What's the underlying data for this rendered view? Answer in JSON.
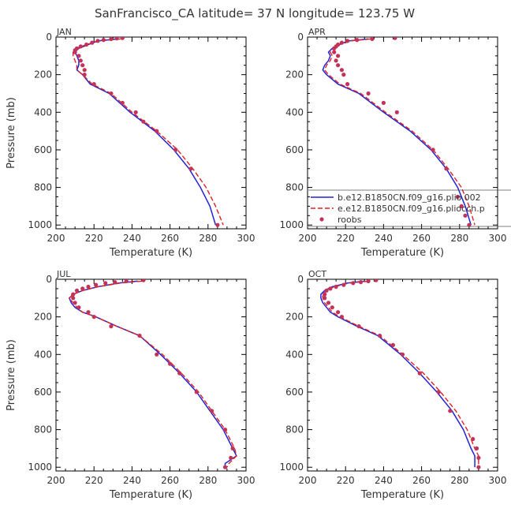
{
  "figure": {
    "title": "SanFrancisco_CA  latitude= 37 N longitude= 123.75 W"
  },
  "colors": {
    "series1": "#2323d6",
    "series2": "#e02020",
    "roobs": "#c2335a",
    "axis": "#000000"
  },
  "chart_data": [
    {
      "type": "line",
      "title": "JAN",
      "xlabel": "Temperature (K)",
      "ylabel": "Pressure (mb)",
      "xlim": [
        200,
        300
      ],
      "ylim": [
        1020,
        0
      ],
      "xticks": [
        200,
        220,
        240,
        260,
        280,
        300
      ],
      "yticks": [
        0,
        200,
        400,
        600,
        800,
        1000
      ],
      "y_inverted": true,
      "series": [
        {
          "name": "",
          "style": "solid",
          "points": [
            [
              233,
              10
            ],
            [
              222,
              20
            ],
            [
              217,
              40
            ],
            [
              212,
              60
            ],
            [
              210,
              80
            ],
            [
              211,
              100
            ],
            [
              212,
              125
            ],
            [
              212,
              150
            ],
            [
              211,
              175
            ],
            [
              214,
              200
            ],
            [
              218,
              250
            ],
            [
              228,
              300
            ],
            [
              239,
              400
            ],
            [
              252,
              500
            ],
            [
              262,
              600
            ],
            [
              270,
              700
            ],
            [
              276,
              800
            ],
            [
              281,
              900
            ],
            [
              284,
              1000
            ]
          ]
        },
        {
          "name": "",
          "style": "dashed",
          "points": [
            [
              234,
              10
            ],
            [
              223,
              20
            ],
            [
              216,
              40
            ],
            [
              211,
              60
            ],
            [
              209,
              80
            ],
            [
              209,
              100
            ],
            [
              210,
              125
            ],
            [
              211,
              150
            ],
            [
              211,
              175
            ],
            [
              214,
              200
            ],
            [
              219,
              250
            ],
            [
              229,
              300
            ],
            [
              240,
              400
            ],
            [
              253,
              500
            ],
            [
              264,
              600
            ],
            [
              272,
              700
            ],
            [
              279,
              800
            ],
            [
              284,
              900
            ],
            [
              288,
              1000
            ]
          ]
        }
      ],
      "roobs": [
        [
          235,
          5
        ],
        [
          232,
          7
        ],
        [
          229,
          10
        ],
        [
          225,
          15
        ],
        [
          222,
          20
        ],
        [
          219,
          30
        ],
        [
          216,
          40
        ],
        [
          213,
          50
        ],
        [
          211,
          60
        ],
        [
          210,
          70
        ],
        [
          210,
          80
        ],
        [
          212,
          100
        ],
        [
          213,
          125
        ],
        [
          214,
          150
        ],
        [
          215,
          175
        ],
        [
          215,
          200
        ],
        [
          220,
          250
        ],
        [
          229,
          300
        ],
        [
          235,
          350
        ],
        [
          242,
          400
        ],
        [
          246,
          450
        ],
        [
          253,
          500
        ],
        [
          263,
          600
        ],
        [
          271,
          700
        ],
        [
          285,
          1000
        ]
      ]
    },
    {
      "type": "line",
      "title": "APR",
      "xlabel": "Temperature (K)",
      "ylabel": "",
      "xlim": [
        200,
        300
      ],
      "ylim": [
        1020,
        0
      ],
      "xticks": [
        200,
        220,
        240,
        260,
        280,
        300
      ],
      "yticks": [
        0,
        200,
        400,
        600,
        800,
        1000
      ],
      "y_inverted": true,
      "legend": {
        "placement": "lower-right",
        "entries": [
          {
            "label": "b.e12.B1850CN.f09_g16.plio.002",
            "style": "solid"
          },
          {
            "label": "e.e12.B1850CN.f09_g16.pliocch.p",
            "style": "dashed"
          },
          {
            "label": "roobs",
            "style": "marker"
          }
        ]
      },
      "series": [
        {
          "name": "b.e12.B1850CN.f09_g16.plio.002",
          "style": "solid",
          "points": [
            [
              232,
              10
            ],
            [
              222,
              20
            ],
            [
              216,
              40
            ],
            [
              213,
              60
            ],
            [
              211,
              80
            ],
            [
              212,
              100
            ],
            [
              211,
              125
            ],
            [
              209,
              150
            ],
            [
              208,
              175
            ],
            [
              210,
              200
            ],
            [
              216,
              250
            ],
            [
              227,
              300
            ],
            [
              240,
              400
            ],
            [
              254,
              500
            ],
            [
              265,
              600
            ],
            [
              273,
              700
            ],
            [
              279,
              800
            ],
            [
              283,
              900
            ],
            [
              286,
              1000
            ]
          ]
        },
        {
          "name": "e.e12.B1850CN.f09_g16.pliocch.p",
          "style": "dashed",
          "points": [
            [
              233,
              10
            ],
            [
              223,
              20
            ],
            [
              217,
              40
            ],
            [
              214,
              60
            ],
            [
              212,
              80
            ],
            [
              213,
              100
            ],
            [
              212,
              125
            ],
            [
              210,
              150
            ],
            [
              209,
              175
            ],
            [
              211,
              200
            ],
            [
              217,
              250
            ],
            [
              228,
              300
            ],
            [
              241,
              400
            ],
            [
              255,
              500
            ],
            [
              266,
              600
            ],
            [
              274,
              700
            ],
            [
              281,
              800
            ],
            [
              285,
              900
            ],
            [
              288,
              1000
            ]
          ]
        }
      ],
      "roobs": [
        [
          246,
          5
        ],
        [
          234,
          10
        ],
        [
          226,
          15
        ],
        [
          221,
          20
        ],
        [
          218,
          30
        ],
        [
          216,
          40
        ],
        [
          215,
          50
        ],
        [
          214,
          60
        ],
        [
          214,
          80
        ],
        [
          216,
          100
        ],
        [
          215,
          125
        ],
        [
          216,
          150
        ],
        [
          218,
          175
        ],
        [
          219,
          200
        ],
        [
          221,
          250
        ],
        [
          232,
          300
        ],
        [
          240,
          350
        ],
        [
          247,
          400
        ],
        [
          266,
          600
        ],
        [
          273,
          700
        ],
        [
          279,
          850
        ],
        [
          281,
          900
        ],
        [
          283,
          950
        ],
        [
          285,
          1000
        ]
      ]
    },
    {
      "type": "line",
      "title": "JUL",
      "xlabel": "Temperature (K)",
      "ylabel": "Pressure (mb)",
      "xlim": [
        200,
        300
      ],
      "ylim": [
        1020,
        0
      ],
      "xticks": [
        200,
        220,
        240,
        260,
        280,
        300
      ],
      "yticks": [
        0,
        200,
        400,
        600,
        800,
        1000
      ],
      "y_inverted": true,
      "series": [
        {
          "name": "",
          "style": "solid",
          "points": [
            [
              243,
              10
            ],
            [
              233,
              20
            ],
            [
              222,
              40
            ],
            [
              214,
              60
            ],
            [
              209,
              80
            ],
            [
              207,
              100
            ],
            [
              208,
              125
            ],
            [
              210,
              150
            ],
            [
              214,
              175
            ],
            [
              221,
              200
            ],
            [
              232,
              250
            ],
            [
              244,
              300
            ],
            [
              255,
              400
            ],
            [
              265,
              500
            ],
            [
              274,
              600
            ],
            [
              281,
              700
            ],
            [
              288,
              800
            ],
            [
              293,
              900
            ],
            [
              295,
              940
            ],
            [
              289,
              980
            ],
            [
              289,
              1000
            ]
          ]
        },
        {
          "name": "",
          "style": "dashed",
          "points": [
            [
              245,
              10
            ],
            [
              234,
              20
            ],
            [
              222,
              40
            ],
            [
              214,
              60
            ],
            [
              209,
              80
            ],
            [
              207,
              100
            ],
            [
              209,
              125
            ],
            [
              211,
              150
            ],
            [
              214,
              175
            ],
            [
              221,
              200
            ],
            [
              232,
              250
            ],
            [
              244,
              300
            ],
            [
              256,
              400
            ],
            [
              266,
              500
            ],
            [
              275,
              600
            ],
            [
              282,
              700
            ],
            [
              289,
              800
            ],
            [
              294,
              900
            ],
            [
              295,
              940
            ],
            [
              291,
              980
            ],
            [
              290,
              1000
            ]
          ]
        }
      ],
      "roobs": [
        [
          246,
          5
        ],
        [
          237,
          10
        ],
        [
          231,
          15
        ],
        [
          226,
          20
        ],
        [
          221,
          30
        ],
        [
          217,
          40
        ],
        [
          214,
          50
        ],
        [
          211,
          60
        ],
        [
          209,
          80
        ],
        [
          209,
          100
        ],
        [
          210,
          125
        ],
        [
          212,
          150
        ],
        [
          217,
          175
        ],
        [
          220,
          200
        ],
        [
          229,
          250
        ],
        [
          244,
          300
        ],
        [
          253,
          400
        ],
        [
          260,
          450
        ],
        [
          265,
          500
        ],
        [
          274,
          600
        ],
        [
          282,
          700
        ],
        [
          289,
          800
        ],
        [
          293,
          900
        ],
        [
          292,
          950
        ],
        [
          289,
          1000
        ]
      ]
    },
    {
      "type": "line",
      "title": "OCT",
      "xlabel": "Temperature (K)",
      "ylabel": "",
      "xlim": [
        200,
        300
      ],
      "ylim": [
        1020,
        0
      ],
      "xticks": [
        200,
        220,
        240,
        260,
        280,
        300
      ],
      "yticks": [
        0,
        200,
        400,
        600,
        800,
        1000
      ],
      "y_inverted": true,
      "series": [
        {
          "name": "",
          "style": "solid",
          "points": [
            [
              230,
              10
            ],
            [
              221,
              20
            ],
            [
              213,
              40
            ],
            [
              209,
              60
            ],
            [
              207,
              80
            ],
            [
              207,
              100
            ],
            [
              208,
              125
            ],
            [
              210,
              150
            ],
            [
              212,
              175
            ],
            [
              216,
              200
            ],
            [
              226,
              250
            ],
            [
              237,
              300
            ],
            [
              249,
              400
            ],
            [
              259,
              500
            ],
            [
              268,
              600
            ],
            [
              276,
              700
            ],
            [
              282,
              800
            ],
            [
              286,
              900
            ],
            [
              288,
              940
            ],
            [
              288,
              1000
            ]
          ]
        },
        {
          "name": "",
          "style": "dashed",
          "points": [
            [
              232,
              10
            ],
            [
              222,
              20
            ],
            [
              214,
              40
            ],
            [
              210,
              60
            ],
            [
              208,
              80
            ],
            [
              208,
              100
            ],
            [
              209,
              125
            ],
            [
              211,
              150
            ],
            [
              213,
              175
            ],
            [
              217,
              200
            ],
            [
              227,
              250
            ],
            [
              238,
              300
            ],
            [
              250,
              400
            ],
            [
              261,
              500
            ],
            [
              270,
              600
            ],
            [
              278,
              700
            ],
            [
              284,
              800
            ],
            [
              288,
              900
            ],
            [
              290,
              940
            ],
            [
              290,
              1000
            ]
          ]
        }
      ],
      "roobs": [
        [
          236,
          5
        ],
        [
          232,
          10
        ],
        [
          228,
          15
        ],
        [
          224,
          20
        ],
        [
          219,
          30
        ],
        [
          215,
          40
        ],
        [
          212,
          50
        ],
        [
          210,
          60
        ],
        [
          209,
          80
        ],
        [
          209,
          100
        ],
        [
          211,
          125
        ],
        [
          213,
          150
        ],
        [
          216,
          175
        ],
        [
          218,
          200
        ],
        [
          227,
          250
        ],
        [
          238,
          300
        ],
        [
          245,
          350
        ],
        [
          250,
          400
        ],
        [
          259,
          500
        ],
        [
          269,
          600
        ],
        [
          275,
          700
        ],
        [
          287,
          850
        ],
        [
          289,
          900
        ],
        [
          290,
          950
        ],
        [
          290,
          1000
        ]
      ]
    }
  ]
}
